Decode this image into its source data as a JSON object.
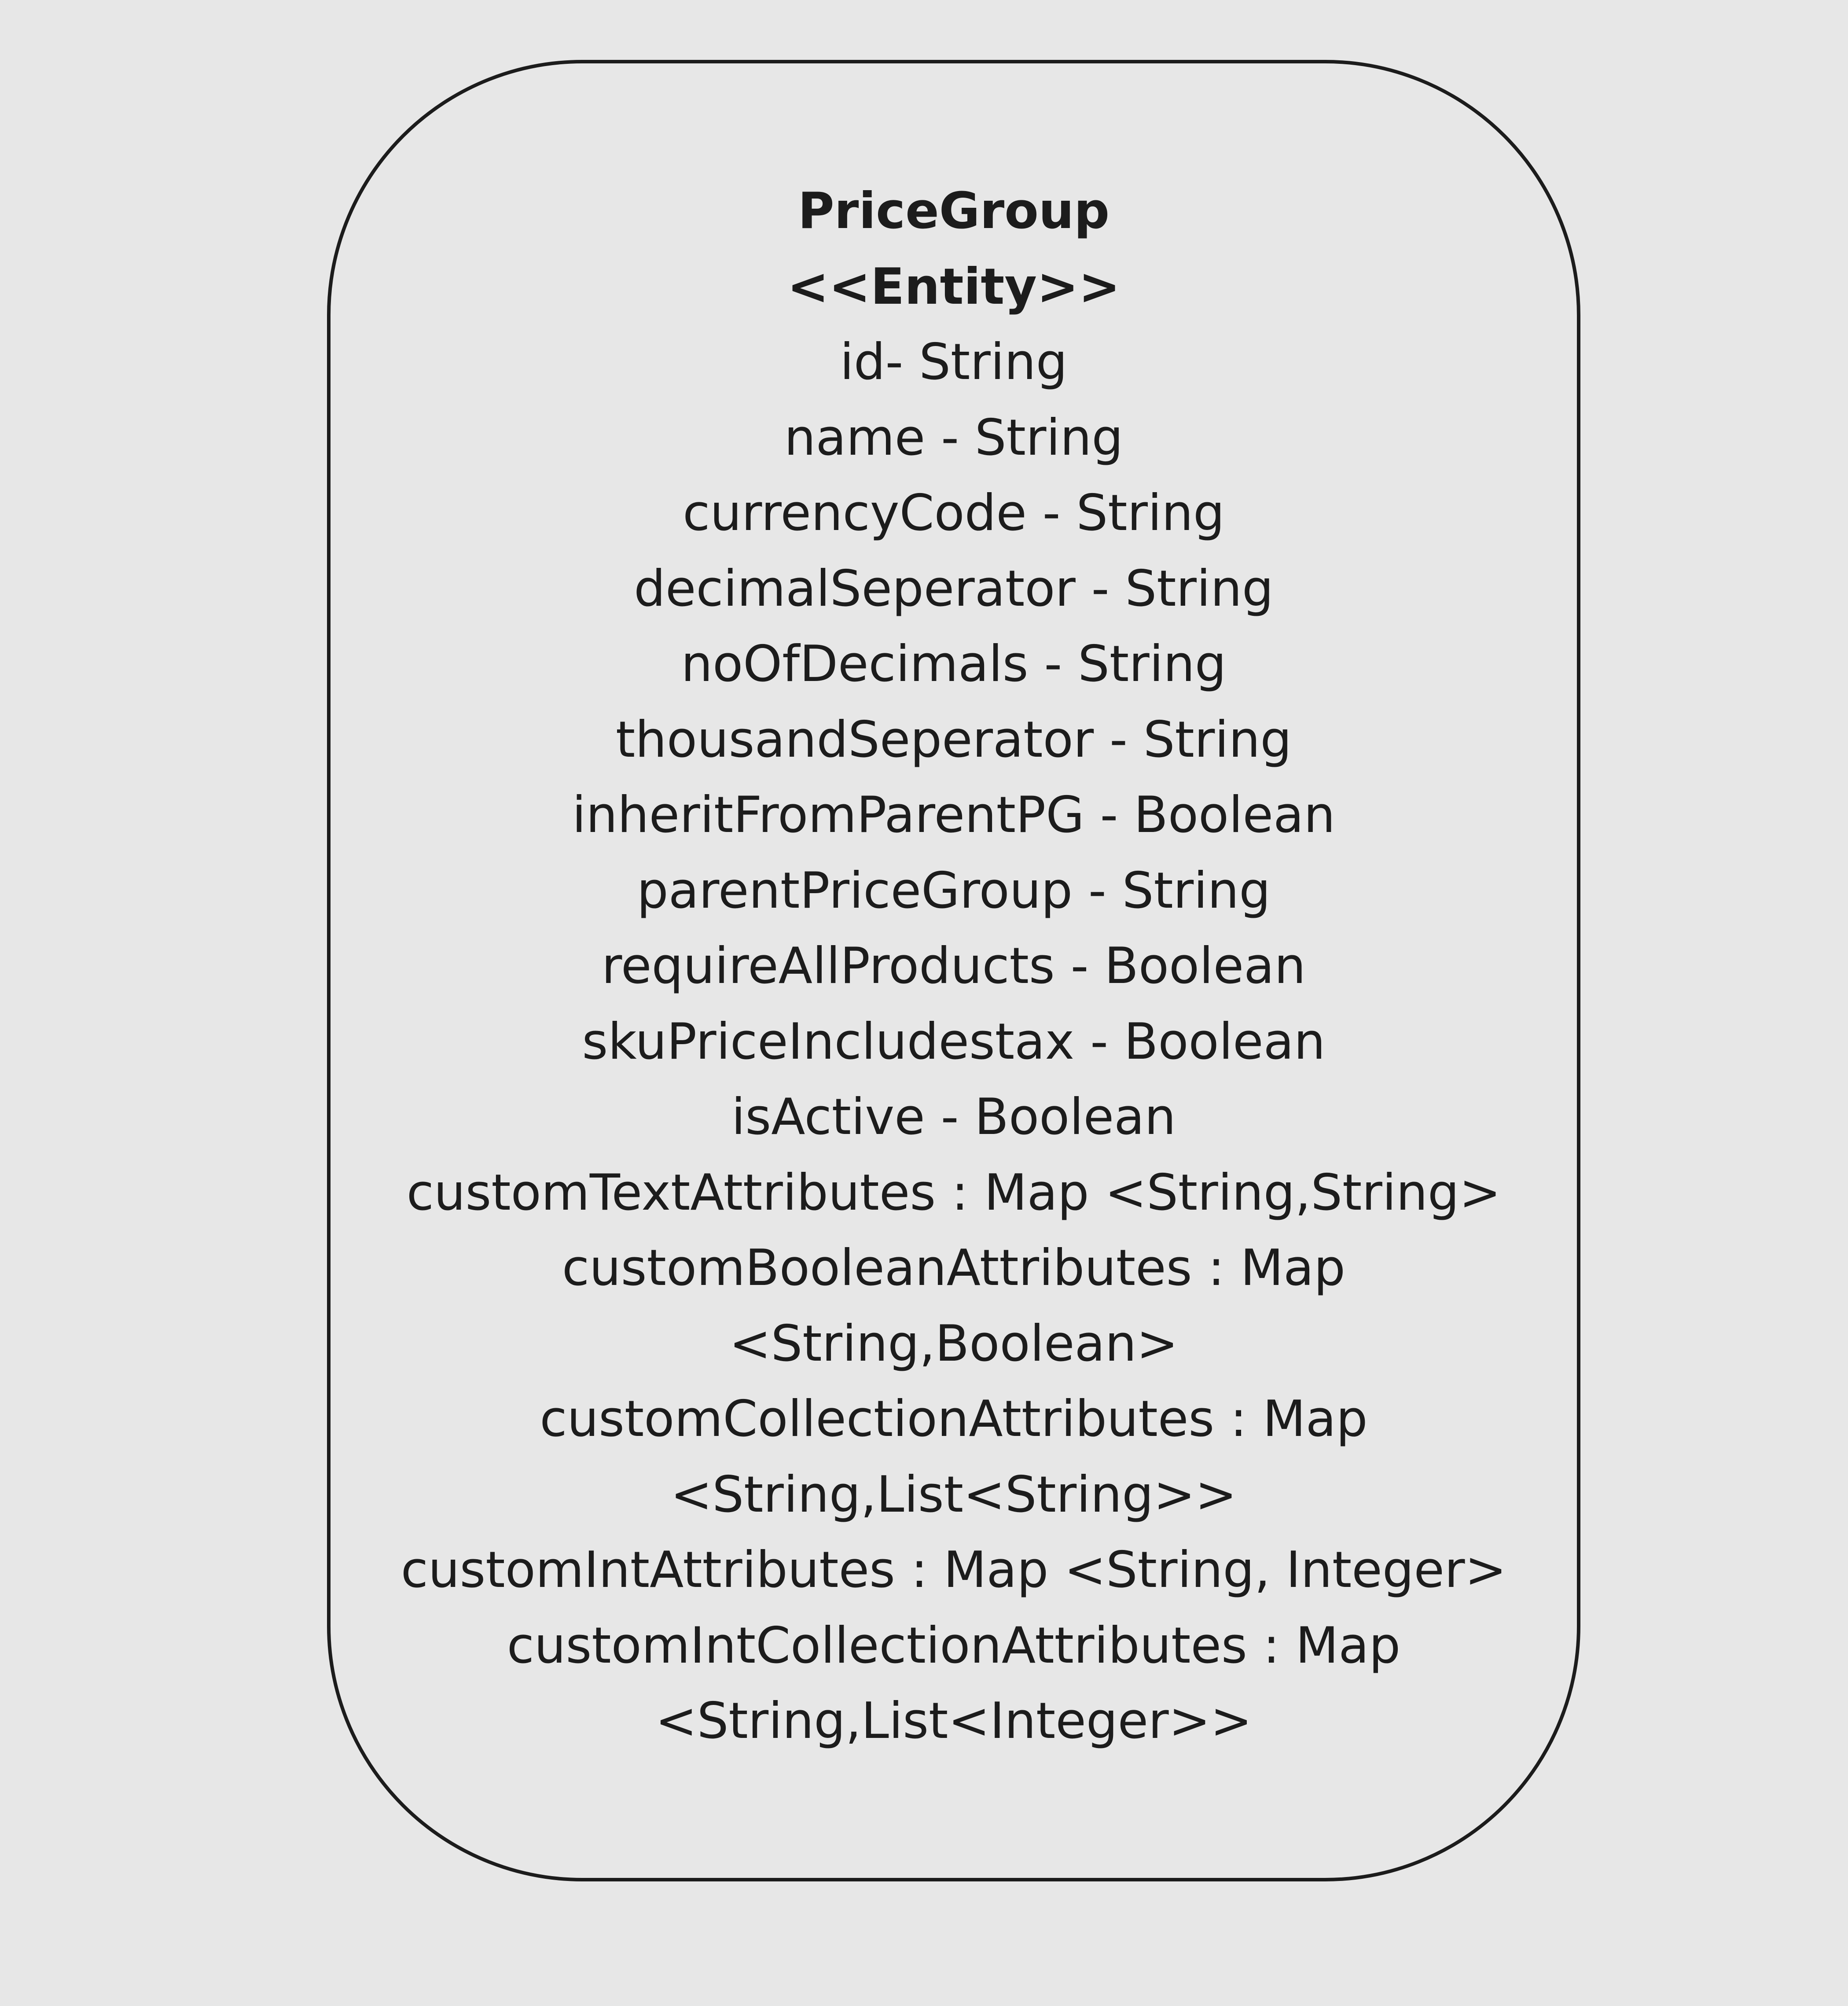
{
  "entity": {
    "name": "PriceGroup",
    "stereotype": "<<Entity>>",
    "attributes": [
      "id- String",
      "name - String",
      "currencyCode - String",
      "decimalSeperator - String",
      "noOfDecimals - String",
      "thousandSeperator - String",
      "inheritFromParentPG - Boolean",
      "parentPriceGroup - String",
      "requireAllProducts - Boolean",
      "skuPriceIncludestax - Boolean",
      "isActive - Boolean",
      "customTextAttributes : Map <String,String>",
      "customBooleanAttributes : Map",
      "<String,Boolean>",
      "customCollectionAttributes : Map",
      "<String,List<String>>",
      "customIntAttributes : Map <String, Integer>",
      "customIntCollectionAttributes : Map",
      "<String,List<Integer>>"
    ]
  }
}
